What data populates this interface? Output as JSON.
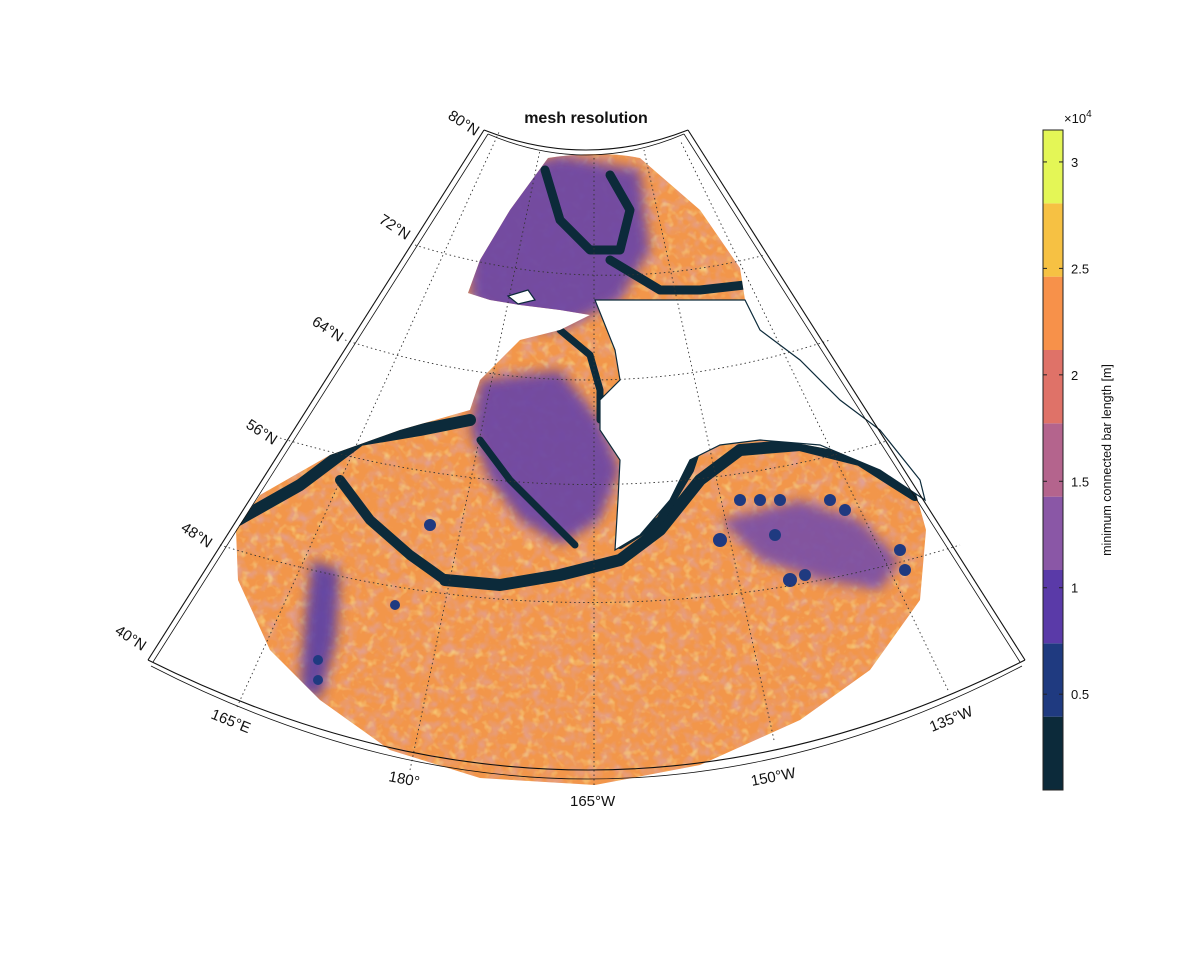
{
  "figure": {
    "title": "mesh resolution",
    "projection": "conic sector, North Pacific / Bering Sea / Arctic",
    "latitudes": [
      "80°N",
      "72°N",
      "64°N",
      "56°N",
      "48°N",
      "40°N"
    ],
    "longitudes": [
      "165°E",
      "180°",
      "165°W",
      "150°W",
      "135°W"
    ],
    "gridlines": "dotted"
  },
  "colorbar": {
    "label": "minimum connected bar length [m]",
    "exponent_base": "×10",
    "exponent_power": "4",
    "tick_labels": [
      "0.5",
      "1",
      "1.5",
      "2",
      "2.5",
      "3"
    ],
    "tick_values": [
      0.5,
      1,
      1.5,
      2,
      2.5,
      3
    ],
    "range": [
      0.05,
      3.15
    ],
    "colors": [
      "#0c2a3a",
      "#1f3a80",
      "#5a3aa8",
      "#8a57a6",
      "#b4648d",
      "#df7268",
      "#f7914a",
      "#f6c143",
      "#e4f656"
    ]
  },
  "legend_colors": {
    "land": "#ffffff",
    "coast": "#0c2a3a",
    "deep_ocean": "#f2964a"
  }
}
